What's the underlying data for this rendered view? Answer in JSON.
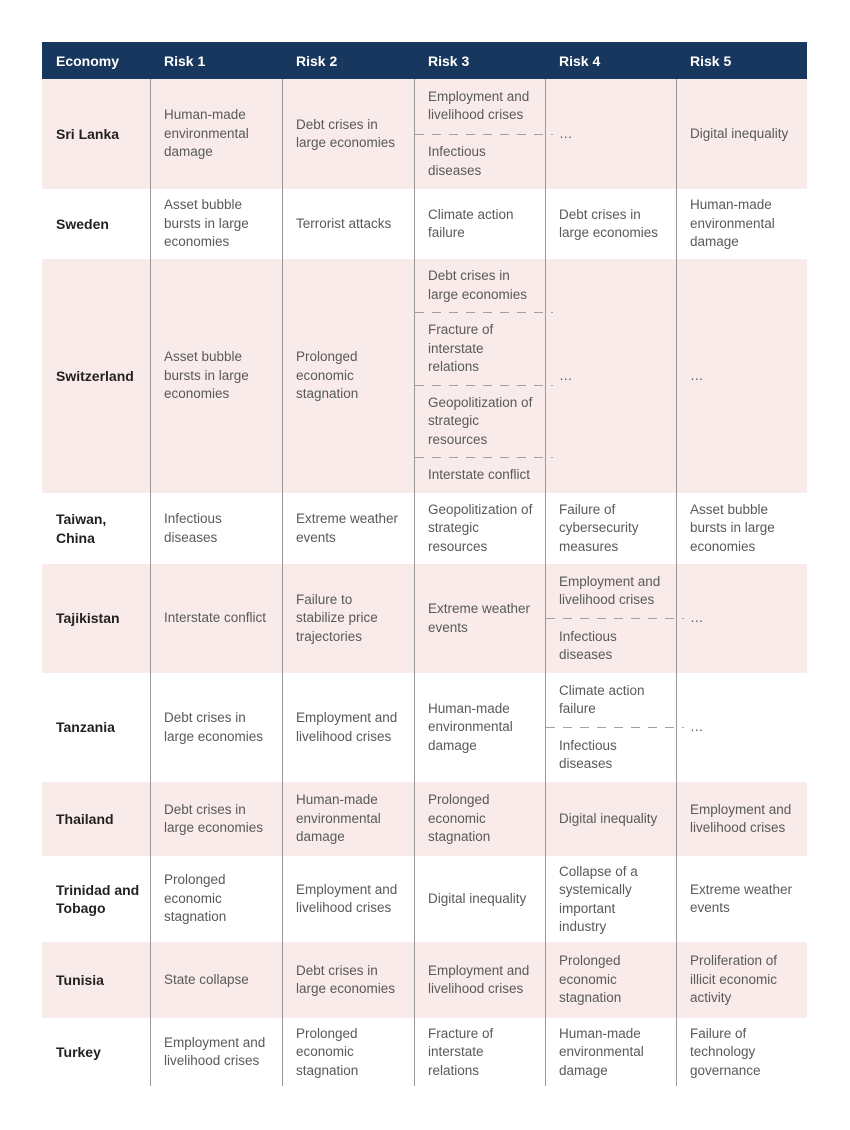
{
  "table": {
    "header": [
      "Economy",
      "Risk 1",
      "Risk 2",
      "Risk 3",
      "Risk 4",
      "Risk 5"
    ],
    "rows": [
      {
        "economy": "Sri Lanka",
        "risks": [
          [
            "Human-made environmental damage"
          ],
          [
            "Debt crises in large economies"
          ],
          [
            "Employment and livelihood crises",
            "Infectious diseases"
          ],
          [
            "…"
          ],
          [
            "Digital inequality"
          ]
        ]
      },
      {
        "economy": "Sweden",
        "risks": [
          [
            "Asset bubble bursts in large economies"
          ],
          [
            "Terrorist attacks"
          ],
          [
            "Climate action failure"
          ],
          [
            "Debt crises in large economies"
          ],
          [
            "Human-made environmental damage"
          ]
        ]
      },
      {
        "economy": "Switzerland",
        "risks": [
          [
            "Asset bubble bursts in large economies"
          ],
          [
            "Prolonged economic stagnation"
          ],
          [
            "Debt crises in large economies",
            "Fracture of interstate relations",
            "Geopolitization of strategic resources",
            "Interstate conflict"
          ],
          [
            "…"
          ],
          [
            "…"
          ]
        ]
      },
      {
        "economy": "Taiwan, China",
        "risks": [
          [
            "Infectious diseases"
          ],
          [
            "Extreme weather events"
          ],
          [
            "Geopolitization of strategic resources"
          ],
          [
            "Failure of cybersecurity measures"
          ],
          [
            "Asset bubble bursts in large economies"
          ]
        ]
      },
      {
        "economy": "Tajikistan",
        "risks": [
          [
            "Interstate conflict"
          ],
          [
            "Failure to stabilize price trajectories"
          ],
          [
            "Extreme weather events"
          ],
          [
            "Employment and livelihood crises",
            "Infectious diseases"
          ],
          [
            "…"
          ]
        ]
      },
      {
        "economy": "Tanzania",
        "risks": [
          [
            "Debt crises in large economies"
          ],
          [
            "Employment and livelihood crises"
          ],
          [
            "Human-made environmental damage"
          ],
          [
            "Climate action failure",
            "Infectious diseases"
          ],
          [
            "…"
          ]
        ]
      },
      {
        "economy": "Thailand",
        "risks": [
          [
            "Debt crises in large economies"
          ],
          [
            "Human-made environmental damage"
          ],
          [
            "Prolonged economic stagnation"
          ],
          [
            "Digital inequality"
          ],
          [
            "Employment and livelihood crises"
          ]
        ]
      },
      {
        "economy": "Trinidad and Tobago",
        "risks": [
          [
            "Prolonged economic stagnation"
          ],
          [
            "Employment and livelihood crises"
          ],
          [
            "Digital inequality"
          ],
          [
            "Collapse of a systemically important industry"
          ],
          [
            "Extreme weather events"
          ]
        ]
      },
      {
        "economy": "Tunisia",
        "risks": [
          [
            "State collapse"
          ],
          [
            "Debt crises in large economies"
          ],
          [
            "Employment and livelihood crises"
          ],
          [
            "Prolonged economic stagnation"
          ],
          [
            "Proliferation of illicit economic activity"
          ]
        ]
      },
      {
        "economy": "Turkey",
        "risks": [
          [
            "Employment and livelihood crises"
          ],
          [
            "Prolonged economic stagnation"
          ],
          [
            "Fracture of interstate relations"
          ],
          [
            "Human-made environmental damage"
          ],
          [
            "Failure of technology governance"
          ]
        ]
      }
    ]
  },
  "colors": {
    "header_bg": "#17375e",
    "header_text": "#ffffff",
    "row_bg": "#ffffff",
    "row_alt_bg": "#f9ebea",
    "border_color": "#98989a",
    "dash_color": "#a0a0a3",
    "economy_text": "#221f20",
    "risk_text": "#58595b"
  }
}
